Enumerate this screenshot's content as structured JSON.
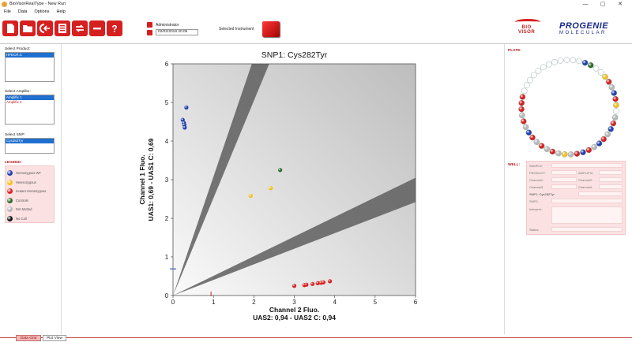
{
  "window": {
    "title": "BioVisorRealType - New Run",
    "controls": [
      "—",
      "▢",
      "✕"
    ]
  },
  "menu": [
    "File",
    "Data",
    "Options",
    "Help"
  ],
  "toolbar": {
    "buttons": [
      "new-run",
      "open-folder",
      "import",
      "save",
      "refresh",
      "minus",
      "help"
    ]
  },
  "header": {
    "user": "Administrator",
    "date": "02/02/2018 20:06",
    "selected_instrument_label": "Selected Instrument",
    "logo_bio": "BIO",
    "logo_visor": "VISOR",
    "logo_progenie": "PROGENIE",
    "logo_molecular": "MOLECULAR"
  },
  "left": {
    "product_label": "Select Product:",
    "products": [
      {
        "label": "HFECR.C",
        "selected": true
      }
    ],
    "amplibx_label": "Select Amplibx:",
    "amplibx": [
      {
        "label": "Amplifix 1",
        "selected": true
      },
      {
        "label": "Amplifix 2",
        "selected": false
      }
    ],
    "snp_label": "Select SNP:",
    "snps": [
      {
        "label": "Cys282Tyr",
        "selected": true
      }
    ],
    "legend_title": "LEGEND:",
    "legend": [
      {
        "label": "Homozygous WT",
        "color": "#1f3fae"
      },
      {
        "label": "Heterozygous",
        "color": "#f2c21a"
      },
      {
        "label": "mutant Homozygous",
        "color": "#d61f1f"
      },
      {
        "label": "Controls",
        "color": "#2d6b2d"
      },
      {
        "label": "Not Mutted",
        "color": "#b8b8b8"
      },
      {
        "label": "No Call",
        "color": "#111111"
      }
    ]
  },
  "chart_data": {
    "type": "scatter",
    "title": "SNP1: Cys282Tyr",
    "xlabel": "Channel 2 Fluo.",
    "xlabel2": "UAS2: 0,94 - UAS2 C: 0,94",
    "ylabel": "Channel 1 Fluo.",
    "ylabel2": "UAS1: 0,69 - UAS1 C: 0,69",
    "xlim": [
      0,
      6
    ],
    "ylim": [
      0,
      6
    ],
    "xticks": [
      0,
      1,
      2,
      3,
      4,
      5,
      6
    ],
    "yticks": [
      0,
      1,
      2,
      3,
      4,
      5,
      6
    ],
    "x_marker": 0.94,
    "y_marker": 0.69,
    "series": [
      {
        "color": "#1f3fae",
        "points": [
          [
            0.33,
            4.87
          ],
          [
            0.24,
            4.55
          ],
          [
            0.27,
            4.47
          ],
          [
            0.28,
            4.42
          ],
          [
            0.29,
            4.35
          ]
        ]
      },
      {
        "color": "#f2c21a",
        "points": [
          [
            1.92,
            2.58
          ],
          [
            2.42,
            2.78
          ]
        ]
      },
      {
        "color": "#2d6b2d",
        "points": [
          [
            2.65,
            3.25
          ]
        ]
      },
      {
        "color": "#d61f1f",
        "points": [
          [
            3.0,
            0.25
          ],
          [
            3.25,
            0.27
          ],
          [
            3.3,
            0.28
          ],
          [
            3.45,
            0.3
          ],
          [
            3.58,
            0.32
          ],
          [
            3.66,
            0.33
          ],
          [
            3.72,
            0.34
          ],
          [
            3.88,
            0.37
          ]
        ]
      }
    ],
    "bands": [
      {
        "from": [
          [
            0,
            0
          ],
          [
            1.95,
            6
          ]
        ],
        "to": [
          [
            0,
            0
          ],
          [
            2.38,
            6
          ]
        ]
      },
      {
        "from": [
          [
            0,
            0
          ],
          [
            6,
            3.05
          ]
        ],
        "to": [
          [
            0,
            0
          ],
          [
            6,
            2.42
          ]
        ]
      }
    ]
  },
  "right": {
    "plate_label": "PLATE:",
    "plate_wells": [
      "#1f3fae",
      "#2d6b2d",
      "#ffffff",
      "#ffffff",
      "#f2c21a",
      "#d61f1f",
      "#b8b8b8",
      "#1f3fae",
      "#d61f1f",
      "#f2c21a",
      "#ffffff",
      "#b8b8b8",
      "#d61f1f",
      "#1f3fae",
      "#b8b8b8",
      "#d61f1f",
      "#1f3fae",
      "#b8b8b8",
      "#d61f1f",
      "#1f3fae",
      "#d61f1f",
      "#b8b8b8",
      "#f2c21a",
      "#b8b8b8",
      "#d61f1f",
      "#b8b8b8",
      "#d61f1f",
      "#b8b8b8",
      "#d61f1f",
      "#1f3fae",
      "#b8b8b8",
      "#d61f1f",
      "#b8b8b8",
      "#d61f1f",
      "#d61f1f",
      "#d61f1f",
      "#ffffff",
      "#ffffff",
      "#ffffff",
      "#ffffff",
      "#ffffff",
      "#ffffff",
      "#ffffff",
      "#ffffff",
      "#ffffff",
      "#ffffff",
      "#ffffff",
      "#ffffff"
    ],
    "well_label": "WELL:",
    "well_fields": {
      "sample": "SAMPLE:",
      "product": "PRODUCT:",
      "amplifix": "AMPLIFIX:",
      "channel1": "Channel1:",
      "channel2": "Channel2:",
      "channel3": "Channel3:",
      "channel4": "Channel4:",
      "snp1": "SNP1: Cys282Tyr",
      "snp2": "SNP2:",
      "interpret": "Interpret.:",
      "status": "Status:"
    }
  },
  "tabs": [
    {
      "label": "Data Grid",
      "active": true
    },
    {
      "label": "Plot View",
      "active": false
    }
  ]
}
